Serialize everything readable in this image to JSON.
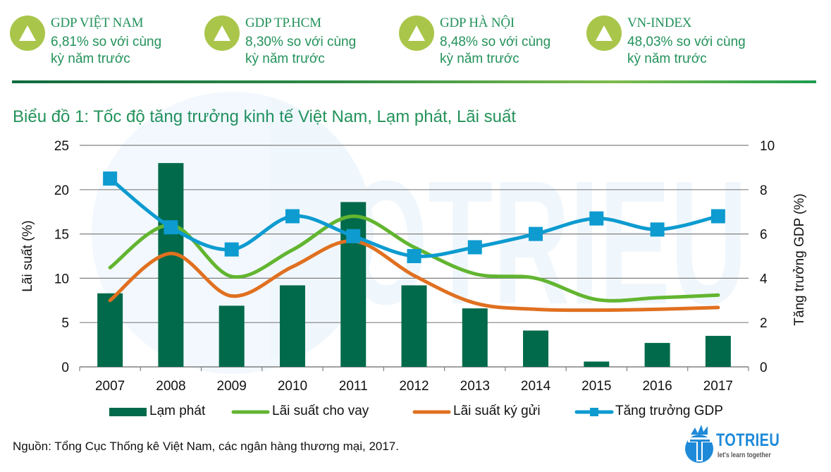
{
  "kpis": [
    {
      "title": "GDP VIỆT NAM",
      "line1": "6,81% so với cùng",
      "line2": "kỳ năm trước",
      "icon": "triangle-up-icon"
    },
    {
      "title": "GDP TP.HCM",
      "line1": "8,30% so với cùng",
      "line2": "kỳ năm trước",
      "icon": "triangle-up-icon"
    },
    {
      "title": "GDP HÀ NỘI",
      "line1": "8,48% so với cùng",
      "line2": "kỳ năm trước",
      "icon": "triangle-up-icon"
    },
    {
      "title": "VN-INDEX",
      "line1": "48,03% so với cùng",
      "line2": "kỳ năm trước",
      "icon": "triangle-up-icon"
    }
  ],
  "colors": {
    "kpi_text": "#23925a",
    "kpi_icon": "#a9c64a",
    "bar": "#006a4a",
    "lending": "#62b530",
    "deposit": "#e07020",
    "gdp": "#0d9bd0",
    "grid": "#808080"
  },
  "chart_title": "Biểu đồ 1: Tốc độ tăng trưởng kinh tế Việt Nam, Lạm phát, Lãi suất",
  "source": "Nguồn: Tổng Cục Thống kê Việt Nam, các ngân hàng thương mại, 2017.",
  "logo": {
    "name": "TOTRIEU",
    "tagline": "let's learn together"
  },
  "chart_data": {
    "type": "bar",
    "title": "Biểu đồ 1: Tốc độ tăng trưởng kinh tế Việt Nam, Lạm phát, Lãi suất",
    "xlabel": "",
    "ylabel": "Lãi suất (%)",
    "y2label": "Tăng trưởng GDP (%)",
    "ylim": [
      0,
      25
    ],
    "y2lim": [
      0,
      10
    ],
    "yticks": [
      0,
      5,
      10,
      15,
      20,
      25
    ],
    "y2ticks": [
      0,
      2,
      4,
      6,
      8,
      10
    ],
    "grid": true,
    "legend_position": "bottom",
    "categories": [
      "2007",
      "2008",
      "2009",
      "2010",
      "2011",
      "2012",
      "2013",
      "2014",
      "2015",
      "2016",
      "2017"
    ],
    "series": [
      {
        "name": "Lạm phát",
        "type": "bar",
        "axis": "left",
        "values": [
          8.3,
          23.0,
          6.9,
          9.2,
          18.6,
          9.2,
          6.6,
          4.1,
          0.6,
          2.7,
          3.5
        ]
      },
      {
        "name": "Lãi suất cho vay",
        "type": "line",
        "axis": "left",
        "smooth": true,
        "values": [
          11.2,
          16.0,
          10.2,
          13.2,
          17.0,
          13.5,
          10.5,
          10.0,
          7.6,
          7.8,
          8.1
        ]
      },
      {
        "name": "Lãi suất ký gửi",
        "type": "line",
        "axis": "left",
        "smooth": true,
        "values": [
          7.5,
          12.8,
          8.0,
          11.3,
          14.2,
          10.3,
          7.2,
          6.5,
          6.4,
          6.5,
          6.7
        ]
      },
      {
        "name": "Tăng trưởng GDP",
        "type": "line",
        "axis": "right",
        "smooth": true,
        "marker": "square",
        "values": [
          8.5,
          6.3,
          5.3,
          6.8,
          5.9,
          5.0,
          5.4,
          6.0,
          6.7,
          6.2,
          6.8
        ]
      }
    ]
  }
}
